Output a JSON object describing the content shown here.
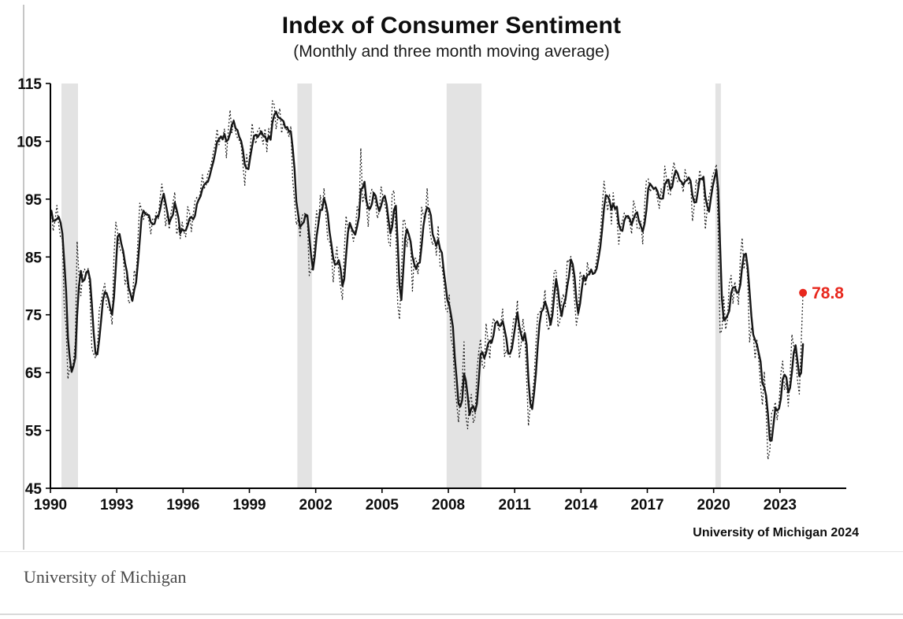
{
  "page": {
    "caption": "University of Michigan"
  },
  "chart_data": {
    "type": "line",
    "title": "Index of Consumer Sentiment",
    "subtitle": "(Monthly and three month moving average)",
    "source_note": "University of Michigan 2024",
    "xlabel": "",
    "ylabel": "",
    "xlim": [
      1990,
      2026
    ],
    "ylim": [
      45,
      115
    ],
    "yticks": [
      45,
      55,
      65,
      75,
      85,
      95,
      105,
      115
    ],
    "xticks": [
      1990,
      1993,
      1996,
      1999,
      2002,
      2005,
      2008,
      2011,
      2014,
      2017,
      2020,
      2023
    ],
    "grid": false,
    "legend_position": "none",
    "line_color": "#161616",
    "band_color": "#e3e3e3",
    "series": [
      {
        "name": "Monthly",
        "style": "dotted"
      },
      {
        "name": "Three month moving average",
        "style": "solid"
      }
    ],
    "recession_bands": [
      [
        1990.5,
        1991.25
      ],
      [
        2001.17,
        2001.83
      ],
      [
        2007.92,
        2009.5
      ],
      [
        2020.08,
        2020.33
      ]
    ],
    "annotation": {
      "label": "78.8",
      "x": 2024.042,
      "y": 78.8,
      "color": "#e8281e"
    },
    "monthly_by_year": {
      "1990": [
        93.0,
        89.5,
        91.3,
        93.9,
        90.6,
        88.3,
        88.2,
        76.4,
        72.8,
        63.9,
        66.0,
        65.5
      ],
      "1991": [
        66.8,
        70.4,
        87.7,
        81.8,
        78.3,
        82.1,
        82.9,
        82.0,
        83.0,
        78.3,
        69.1,
        68.2
      ],
      "1992": [
        67.5,
        68.8,
        76.0,
        77.2,
        79.2,
        80.4,
        76.6,
        76.1,
        75.6,
        73.3,
        85.3,
        91.0
      ],
      "1993": [
        89.3,
        86.6,
        85.9,
        85.6,
        80.3,
        81.5,
        77.0,
        77.3,
        77.9,
        82.7,
        81.2,
        88.2
      ],
      "1994": [
        94.3,
        93.2,
        91.5,
        92.6,
        92.8,
        91.2,
        89.0,
        91.7,
        91.5,
        92.7,
        91.6,
        95.1
      ],
      "1995": [
        97.6,
        95.1,
        90.3,
        92.5,
        89.8,
        92.7,
        94.4,
        96.2,
        88.9,
        90.2,
        88.2,
        91.0
      ],
      "1996": [
        89.3,
        88.5,
        93.7,
        92.7,
        89.4,
        92.4,
        94.7,
        95.3,
        94.7,
        96.5,
        99.2,
        96.9
      ],
      "1997": [
        97.4,
        99.7,
        100.0,
        101.4,
        103.2,
        104.5,
        107.1,
        104.4,
        106.0,
        105.6,
        107.2,
        102.1
      ],
      "1998": [
        106.6,
        110.4,
        106.5,
        108.7,
        106.5,
        105.6,
        105.2,
        104.4,
        100.9,
        97.4,
        102.7,
        100.5
      ],
      "1999": [
        103.9,
        108.1,
        105.7,
        104.6,
        106.8,
        107.3,
        106.0,
        104.5,
        107.2,
        103.2,
        107.2,
        105.4
      ],
      "2000": [
        112.0,
        111.3,
        107.1,
        109.2,
        110.7,
        106.4,
        108.3,
        107.3,
        106.8,
        105.8,
        107.6,
        98.4
      ],
      "2001": [
        94.7,
        90.6,
        91.5,
        88.4,
        92.0,
        92.6,
        92.4,
        91.5,
        81.8,
        82.7,
        83.9,
        88.8
      ],
      "2002": [
        93.0,
        90.7,
        95.7,
        93.0,
        96.9,
        92.4,
        88.1,
        87.6,
        86.1,
        80.6,
        84.2,
        86.7
      ],
      "2003": [
        82.4,
        79.9,
        77.6,
        86.0,
        92.1,
        89.7,
        90.9,
        89.3,
        87.7,
        89.6,
        93.7,
        92.6
      ],
      "2004": [
        103.8,
        94.4,
        95.8,
        94.2,
        90.2,
        95.6,
        96.7,
        95.9,
        94.2,
        91.7,
        92.8,
        97.1
      ],
      "2005": [
        95.5,
        94.1,
        92.6,
        87.7,
        86.9,
        96.0,
        96.5,
        89.1,
        76.9,
        74.2,
        81.6,
        91.5
      ],
      "2006": [
        91.2,
        86.7,
        88.9,
        87.4,
        79.1,
        84.9,
        84.7,
        82.0,
        85.4,
        93.6,
        92.1,
        91.7
      ],
      "2007": [
        96.9,
        91.3,
        88.4,
        87.1,
        88.3,
        85.3,
        90.4,
        83.4,
        83.4,
        80.9,
        76.1,
        75.5
      ],
      "2008": [
        78.4,
        70.8,
        69.5,
        62.6,
        59.8,
        56.4,
        61.2,
        63.0,
        70.3,
        57.6,
        55.3,
        60.1
      ],
      "2009": [
        61.2,
        56.3,
        57.3,
        65.1,
        68.7,
        70.8,
        66.0,
        65.7,
        73.5,
        70.6,
        67.4,
        72.5
      ],
      "2010": [
        74.4,
        73.6,
        73.6,
        72.2,
        73.6,
        76.0,
        67.8,
        68.9,
        68.2,
        67.7,
        71.6,
        74.5
      ],
      "2011": [
        74.2,
        77.5,
        67.5,
        69.8,
        74.3,
        71.5,
        63.7,
        55.8,
        59.5,
        60.8,
        63.7,
        69.9
      ],
      "2012": [
        75.0,
        75.3,
        76.2,
        76.4,
        79.3,
        73.2,
        72.3,
        74.3,
        78.3,
        82.6,
        82.7,
        72.9
      ],
      "2013": [
        73.8,
        77.6,
        78.6,
        76.4,
        84.5,
        84.1,
        85.1,
        82.1,
        77.5,
        73.2,
        75.1,
        82.5
      ],
      "2014": [
        81.2,
        81.6,
        80.0,
        84.1,
        81.9,
        82.5,
        81.8,
        82.5,
        84.6,
        86.9,
        88.8,
        93.6
      ],
      "2015": [
        98.1,
        95.4,
        93.0,
        95.9,
        90.7,
        96.1,
        93.1,
        91.9,
        87.2,
        90.0,
        91.3,
        92.6
      ],
      "2016": [
        92.0,
        91.7,
        91.0,
        89.0,
        94.7,
        93.5,
        90.0,
        89.8,
        91.2,
        87.2,
        93.8,
        98.2
      ],
      "2017": [
        98.5,
        96.3,
        96.9,
        97.0,
        97.1,
        95.0,
        93.4,
        96.8,
        95.1,
        100.7,
        98.5,
        95.9
      ],
      "2018": [
        95.7,
        99.7,
        101.4,
        98.8,
        98.0,
        98.2,
        97.9,
        96.2,
        100.1,
        98.6,
        97.5,
        98.3
      ],
      "2019": [
        91.2,
        93.8,
        98.4,
        97.2,
        100.0,
        98.2,
        98.4,
        89.8,
        93.2,
        95.5,
        96.8,
        99.3
      ],
      "2020": [
        99.8,
        101.0,
        89.1,
        71.8,
        72.3,
        78.1,
        72.5,
        74.1,
        80.4,
        81.8,
        76.9,
        80.7
      ],
      "2021": [
        79.0,
        76.8,
        84.9,
        88.3,
        82.9,
        85.5,
        81.2,
        70.3,
        72.8,
        71.7,
        67.4,
        70.6
      ],
      "2022": [
        67.2,
        62.8,
        59.4,
        65.2,
        58.4,
        50.0,
        51.5,
        58.2,
        58.6,
        59.9,
        56.8,
        59.7
      ],
      "2023": [
        64.9,
        67.0,
        62.0,
        63.5,
        59.2,
        64.4,
        71.6,
        69.5,
        68.1,
        63.8,
        61.3,
        69.7
      ],
      "2024": [
        78.8
      ]
    }
  }
}
